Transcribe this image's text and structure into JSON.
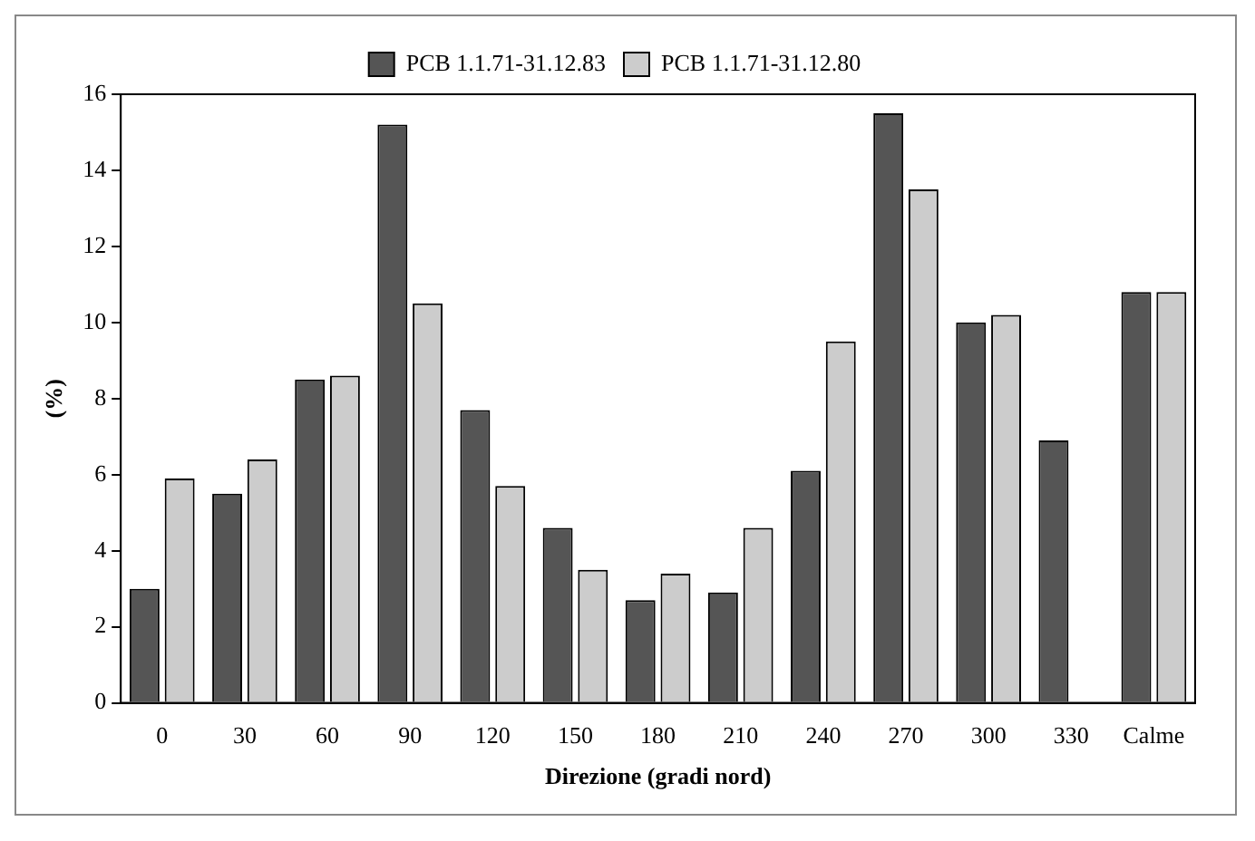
{
  "chart_data": {
    "type": "bar",
    "xlabel": "Direzione (gradi nord)",
    "ylabel": "(%)",
    "categories": [
      "0",
      "30",
      "60",
      "90",
      "120",
      "150",
      "180",
      "210",
      "240",
      "270",
      "300",
      "330",
      "Calme"
    ],
    "series": [
      {
        "name": "PCB 1.1.71-31.12.83",
        "color": "#555555",
        "values": [
          3.0,
          5.5,
          8.5,
          15.2,
          7.7,
          4.6,
          2.7,
          2.9,
          6.1,
          15.5,
          10.0,
          6.9,
          10.8
        ]
      },
      {
        "name": "PCB 1.1.71-31.12.80",
        "color": "#cccccc",
        "values": [
          5.9,
          6.4,
          8.6,
          10.5,
          5.7,
          3.5,
          3.4,
          4.6,
          9.5,
          13.5,
          10.2,
          0,
          10.8
        ]
      }
    ],
    "ylim": [
      0,
      16
    ],
    "yticks": [
      0,
      2,
      4,
      6,
      8,
      10,
      12,
      14,
      16
    ],
    "grid": false,
    "legend": "top"
  }
}
